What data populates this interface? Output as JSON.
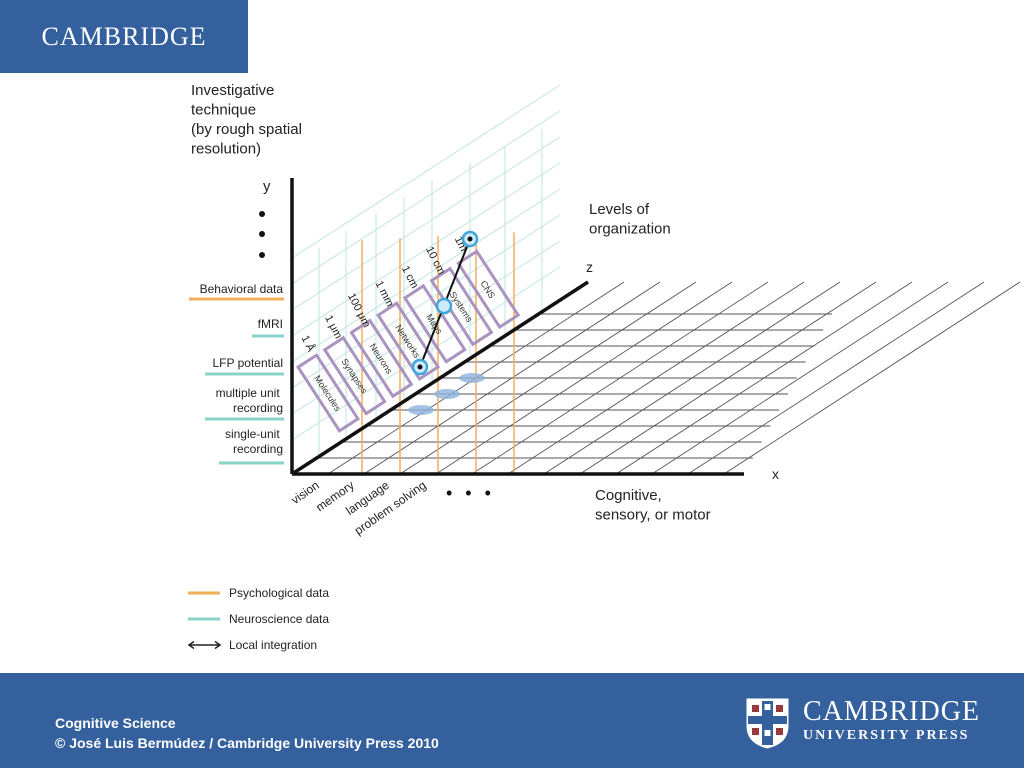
{
  "header": {
    "logo_text": "CAMBRIDGE"
  },
  "diagram": {
    "y_axis": {
      "title_lines": [
        "Investigative",
        "technique",
        "(by rough spatial",
        "resolution)"
      ],
      "letter": "y"
    },
    "z_axis": {
      "title_lines": [
        "Levels of",
        "organization"
      ],
      "letter": "z"
    },
    "x_axis": {
      "title_lines": [
        "Cognitive,",
        "sensory, or motor"
      ],
      "letter": "x"
    },
    "techniques": [
      {
        "label": "Behavioral data",
        "kind": "psychological"
      },
      {
        "label": "fMRI",
        "kind": "neuroscience"
      },
      {
        "label": "LFP potential",
        "kind": "neuroscience"
      },
      {
        "label": "multiple unit",
        "label2": "recording",
        "kind": "neuroscience"
      },
      {
        "label": "single-unit",
        "label2": "recording",
        "kind": "neuroscience"
      }
    ],
    "scales": [
      "1 Å",
      "1 μm",
      "100 μm",
      "1 mm",
      "1 cm",
      "10 cm",
      "1m"
    ],
    "levels": [
      "Molecules",
      "Synapses",
      "Neurons",
      "Networks",
      "Maps",
      "Systems",
      "CNS"
    ],
    "domains": [
      "vision",
      "memory",
      "language",
      "problem solving"
    ],
    "continuation": "• • •",
    "legend": [
      {
        "label": "Psychological data",
        "color": "#f2ae5a"
      },
      {
        "label": "Neuroscience data",
        "color": "#86d3c7"
      },
      {
        "label": "Local integration",
        "color": "#222222"
      }
    ],
    "colors": {
      "psychological": "#f2ae5a",
      "neuroscience": "#86d3c7",
      "level_box": "#a993c0",
      "marker": "#3fa6dd",
      "grid_floor": "#555555",
      "grid_wall": "#bfe6e0"
    }
  },
  "footer": {
    "line1": "Cognitive Science",
    "line2": "© José Luis Bermúdez / Cambridge University Press 2010",
    "press_line1": "CAMBRIDGE",
    "press_line2": "UNIVERSITY PRESS"
  }
}
